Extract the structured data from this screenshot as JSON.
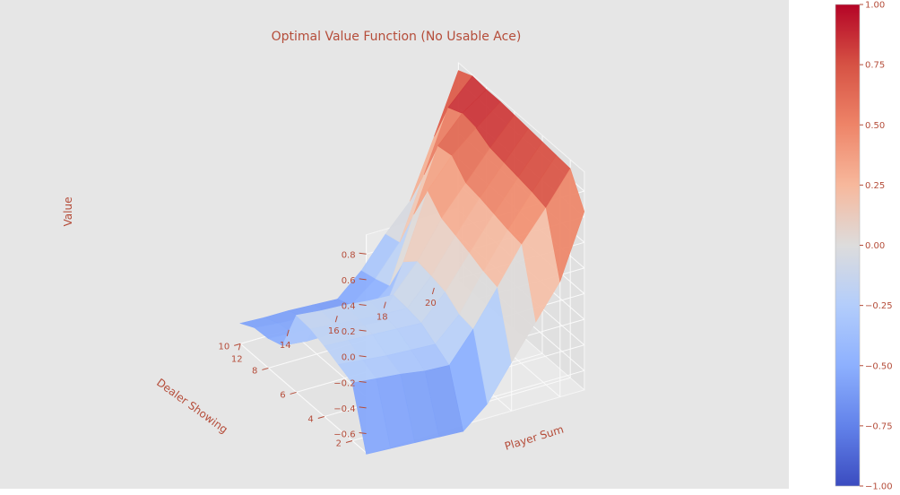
{
  "chart_data": {
    "type": "surface",
    "title": "Optimal Value Function (No Usable Ace)",
    "xlabel": "Player Sum",
    "ylabel": "Dealer Showing",
    "zlabel": "Value",
    "x_ticks": [
      "12",
      "14",
      "16",
      "18",
      "20"
    ],
    "y_ticks": [
      "2",
      "4",
      "6",
      "8",
      "10"
    ],
    "z_ticks": [
      "-0.6",
      "-0.4",
      "-0.2",
      "0.0",
      "0.2",
      "0.4",
      "0.6",
      "0.8"
    ],
    "x": [
      12,
      13,
      14,
      15,
      16,
      17,
      18,
      19,
      20,
      21
    ],
    "y": [
      1,
      2,
      3,
      4,
      5,
      6,
      7,
      8,
      9,
      10
    ],
    "xlim": [
      12,
      21
    ],
    "ylim": [
      1,
      10
    ],
    "zlim": [
      -0.75,
      0.95
    ],
    "grid": true,
    "colorbar": {
      "colormap": "coolwarm",
      "ticks": [
        "1.00",
        "0.75",
        "0.50",
        "0.25",
        "0.00",
        "−0.25",
        "−0.50",
        "−0.75",
        "−1.00"
      ],
      "range": [
        -1.0,
        1.0
      ]
    },
    "z": [
      [
        -0.76,
        -0.77,
        -0.78,
        -0.79,
        -0.8,
        -0.64,
        -0.37,
        -0.11,
        0.15,
        0.64
      ],
      [
        -0.3,
        -0.32,
        -0.34,
        -0.37,
        -0.38,
        -0.15,
        0.12,
        0.4,
        0.63,
        0.88
      ],
      [
        -0.25,
        -0.27,
        -0.29,
        -0.3,
        -0.31,
        -0.13,
        0.15,
        0.42,
        0.66,
        0.89
      ],
      [
        -0.2,
        -0.21,
        -0.22,
        -0.23,
        -0.24,
        -0.05,
        0.2,
        0.45,
        0.68,
        0.9
      ],
      [
        -0.16,
        -0.18,
        -0.2,
        -0.21,
        -0.22,
        -0.02,
        0.24,
        0.48,
        0.7,
        0.91
      ],
      [
        -0.15,
        -0.17,
        -0.18,
        -0.2,
        -0.21,
        0.0,
        0.28,
        0.5,
        0.72,
        0.92
      ],
      [
        -0.48,
        -0.5,
        -0.5,
        -0.5,
        -0.51,
        -0.1,
        0.4,
        0.62,
        0.78,
        0.93
      ],
      [
        -0.52,
        -0.53,
        -0.54,
        -0.54,
        -0.54,
        -0.38,
        0.12,
        0.6,
        0.8,
        0.93
      ],
      [
        -0.53,
        -0.55,
        -0.56,
        -0.56,
        -0.57,
        -0.42,
        -0.19,
        0.28,
        0.75,
        0.94
      ],
      [
        -0.59,
        -0.6,
        -0.6,
        -0.61,
        -0.62,
        -0.45,
        -0.22,
        -0.02,
        0.43,
        0.89
      ]
    ]
  }
}
